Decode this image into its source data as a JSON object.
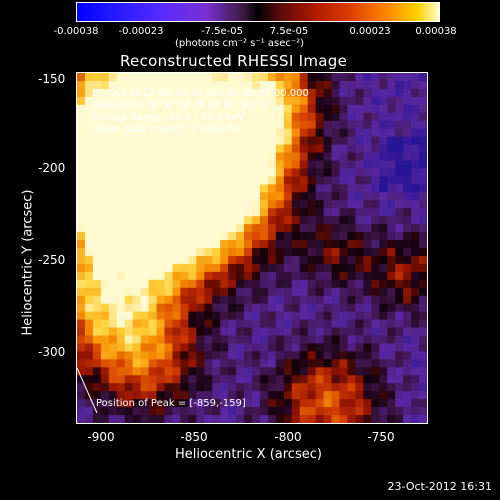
{
  "colorbar": {
    "ticks": [
      "-0.00038",
      "-0.00023",
      "-7.5e-05",
      "7.5e-05",
      "0.00023",
      "0.00038"
    ],
    "units": "(photons cm⁻² s⁻¹ asec⁻²)"
  },
  "title": "Reconstructed RHESSI Image",
  "info": {
    "line1": "23-Oct-2012 00:36:36.000 to 00:37:00.000",
    "line2": "Detectors: 3F 5F 6F 7F 8F 9F, Att 0",
    "line3": "Energy Range: 12.0 - 25.0 keV",
    "line4": "Clean    Total counts: 1.49E+03",
    "peak": "Position of Peak = [-859,-159]"
  },
  "axes": {
    "xlabel": "Heliocentric X (arcsec)",
    "ylabel": "Heliocentric Y (arcsec)",
    "xticks": [
      "-900",
      "-850",
      "-800",
      "-750"
    ],
    "yticks": [
      "-150",
      "-200",
      "-250",
      "-300"
    ]
  },
  "timestamp": "23-Oct-2012 16:31"
}
